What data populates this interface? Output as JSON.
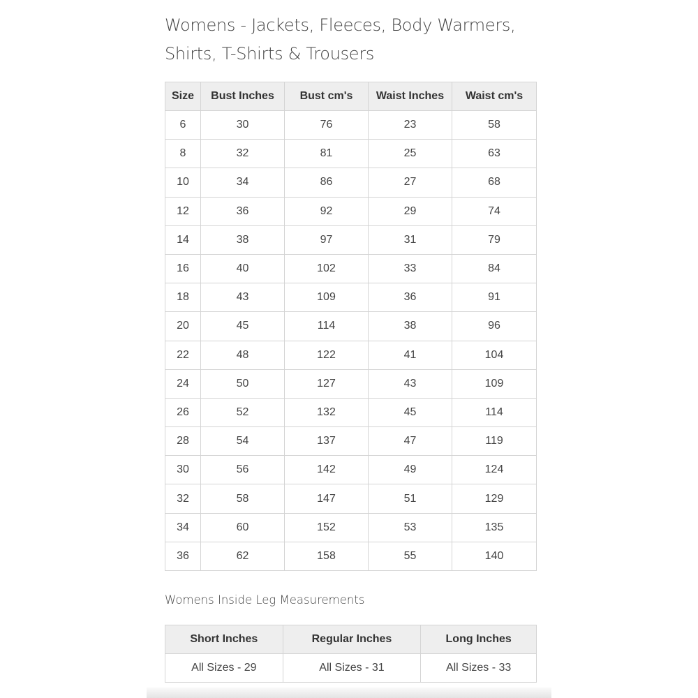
{
  "title_line1": "Womens - Jackets, Fleeces, Body Warmers,",
  "title_line2": "Shirts, T-Shirts & Trousers",
  "size_table": {
    "headers": [
      "Size",
      "Bust Inches",
      "Bust cm's",
      "Waist Inches",
      "Waist cm's"
    ],
    "rows": [
      [
        "6",
        "30",
        "76",
        "23",
        "58"
      ],
      [
        "8",
        "32",
        "81",
        "25",
        "63"
      ],
      [
        "10",
        "34",
        "86",
        "27",
        "68"
      ],
      [
        "12",
        "36",
        "92",
        "29",
        "74"
      ],
      [
        "14",
        "38",
        "97",
        "31",
        "79"
      ],
      [
        "16",
        "40",
        "102",
        "33",
        "84"
      ],
      [
        "18",
        "43",
        "109",
        "36",
        "91"
      ],
      [
        "20",
        "45",
        "114",
        "38",
        "96"
      ],
      [
        "22",
        "48",
        "122",
        "41",
        "104"
      ],
      [
        "24",
        "50",
        "127",
        "43",
        "109"
      ],
      [
        "26",
        "52",
        "132",
        "45",
        "114"
      ],
      [
        "28",
        "54",
        "137",
        "47",
        "119"
      ],
      [
        "30",
        "56",
        "142",
        "49",
        "124"
      ],
      [
        "32",
        "58",
        "147",
        "51",
        "129"
      ],
      [
        "34",
        "60",
        "152",
        "53",
        "135"
      ],
      [
        "36",
        "62",
        "158",
        "55",
        "140"
      ]
    ]
  },
  "leg_heading": "Womens Inside Leg Measurements",
  "leg_table": {
    "headers": [
      "Short Inches",
      "Regular Inches",
      "Long Inches"
    ],
    "rows": [
      [
        "All Sizes - 29",
        "All Sizes - 31",
        "All Sizes - 33"
      ]
    ]
  }
}
